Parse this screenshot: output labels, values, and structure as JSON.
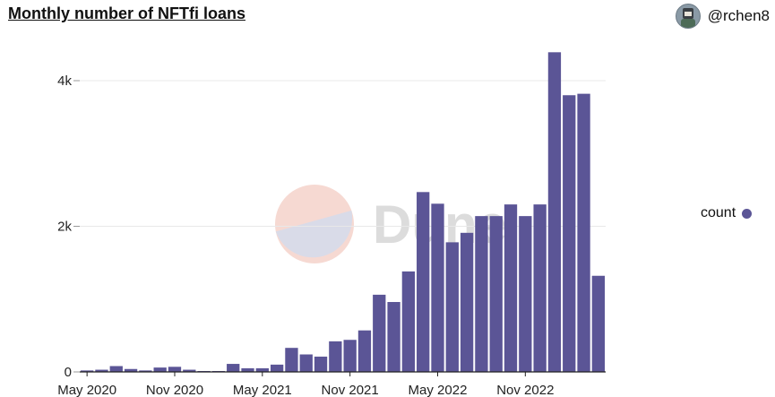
{
  "header": {
    "title": "Monthly number of NFTfi loans",
    "author": "@rchen8"
  },
  "watermark": {
    "text": "Dune",
    "colors": [
      "#f6d9d2",
      "#d9dbe8"
    ]
  },
  "colors": {
    "bar": "#5b5596",
    "grid": "#e8e8e8",
    "axis": "#222222"
  },
  "chart_data": {
    "type": "bar",
    "title": "Monthly number of NFTfi loans",
    "xlabel": "",
    "ylabel": "",
    "ylim": [
      0,
      4500
    ],
    "yticks": [
      0,
      2000,
      4000
    ],
    "ytick_labels": [
      "0",
      "2k",
      "4k"
    ],
    "xtick_labels": [
      {
        "index": 0,
        "label": "May 2020"
      },
      {
        "index": 6,
        "label": "Nov 2020"
      },
      {
        "index": 12,
        "label": "May 2021"
      },
      {
        "index": 18,
        "label": "Nov 2021"
      },
      {
        "index": 24,
        "label": "May 2022"
      },
      {
        "index": 30,
        "label": "Nov 2022"
      }
    ],
    "categories": [
      "2020-05",
      "2020-06",
      "2020-07",
      "2020-08",
      "2020-09",
      "2020-10",
      "2020-11",
      "2020-12",
      "2021-01",
      "2021-02",
      "2021-03",
      "2021-04",
      "2021-05",
      "2021-06",
      "2021-07",
      "2021-08",
      "2021-09",
      "2021-10",
      "2021-11",
      "2021-12",
      "2022-01",
      "2022-02",
      "2022-03",
      "2022-04",
      "2022-05",
      "2022-06",
      "2022-07",
      "2022-08",
      "2022-09",
      "2022-10",
      "2022-11",
      "2022-12",
      "2023-01",
      "2023-02",
      "2023-03",
      "2023-04"
    ],
    "series": [
      {
        "name": "count",
        "values": [
          20,
          30,
          80,
          40,
          20,
          60,
          70,
          30,
          10,
          10,
          110,
          50,
          50,
          100,
          330,
          240,
          210,
          420,
          440,
          570,
          1060,
          960,
          1380,
          2470,
          2310,
          1780,
          1910,
          2140,
          2140,
          2300,
          2140,
          2300,
          4390,
          3800,
          3820,
          1320
        ]
      }
    ],
    "grid": true,
    "legend": "right"
  }
}
